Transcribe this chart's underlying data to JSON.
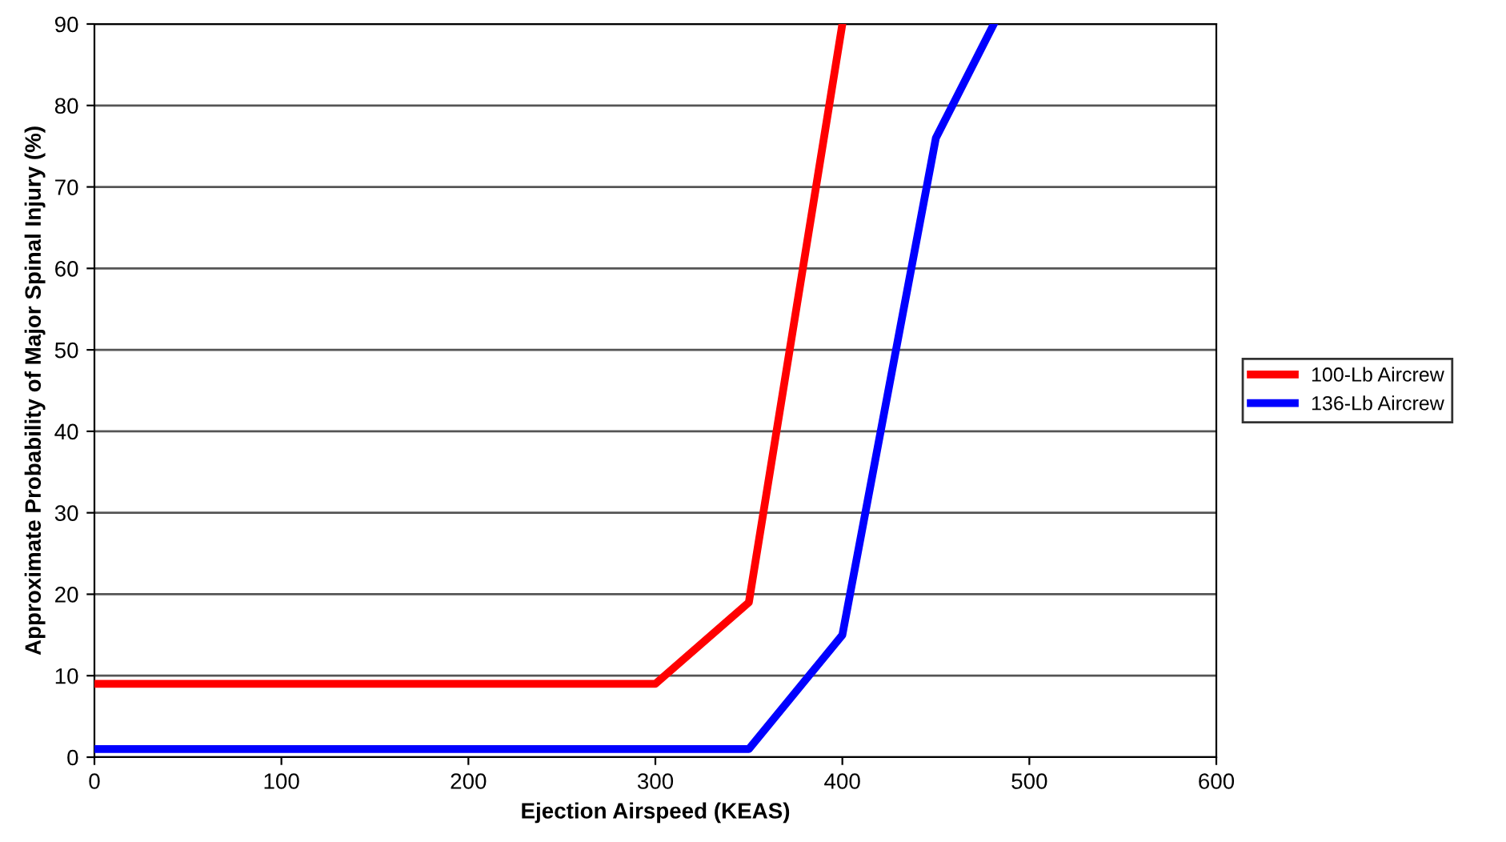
{
  "chart_data": {
    "type": "line",
    "xlabel": "Ejection Airspeed (KEAS)",
    "ylabel": "Approximate Probability of Major Spinal Injury (%)",
    "series": [
      {
        "name": "100-Lb Aircrew",
        "color": "#ff0000",
        "x": [
          0,
          300,
          350,
          400
        ],
        "values": [
          9,
          9,
          19,
          90
        ]
      },
      {
        "name": "136-Lb Aircrew",
        "color": "#0000ff",
        "x": [
          0,
          350,
          400,
          450,
          481
        ],
        "values": [
          1,
          1,
          15,
          76,
          90
        ]
      }
    ],
    "xlim": [
      0,
      600
    ],
    "xticks": [
      0,
      100,
      200,
      300,
      400,
      500,
      600
    ],
    "ylim": [
      0,
      90
    ],
    "yticks": [
      0,
      10,
      20,
      30,
      40,
      50,
      60,
      70,
      80,
      90
    ],
    "grid": "y",
    "legend": "right",
    "marker": "none",
    "line_style": "solid"
  }
}
